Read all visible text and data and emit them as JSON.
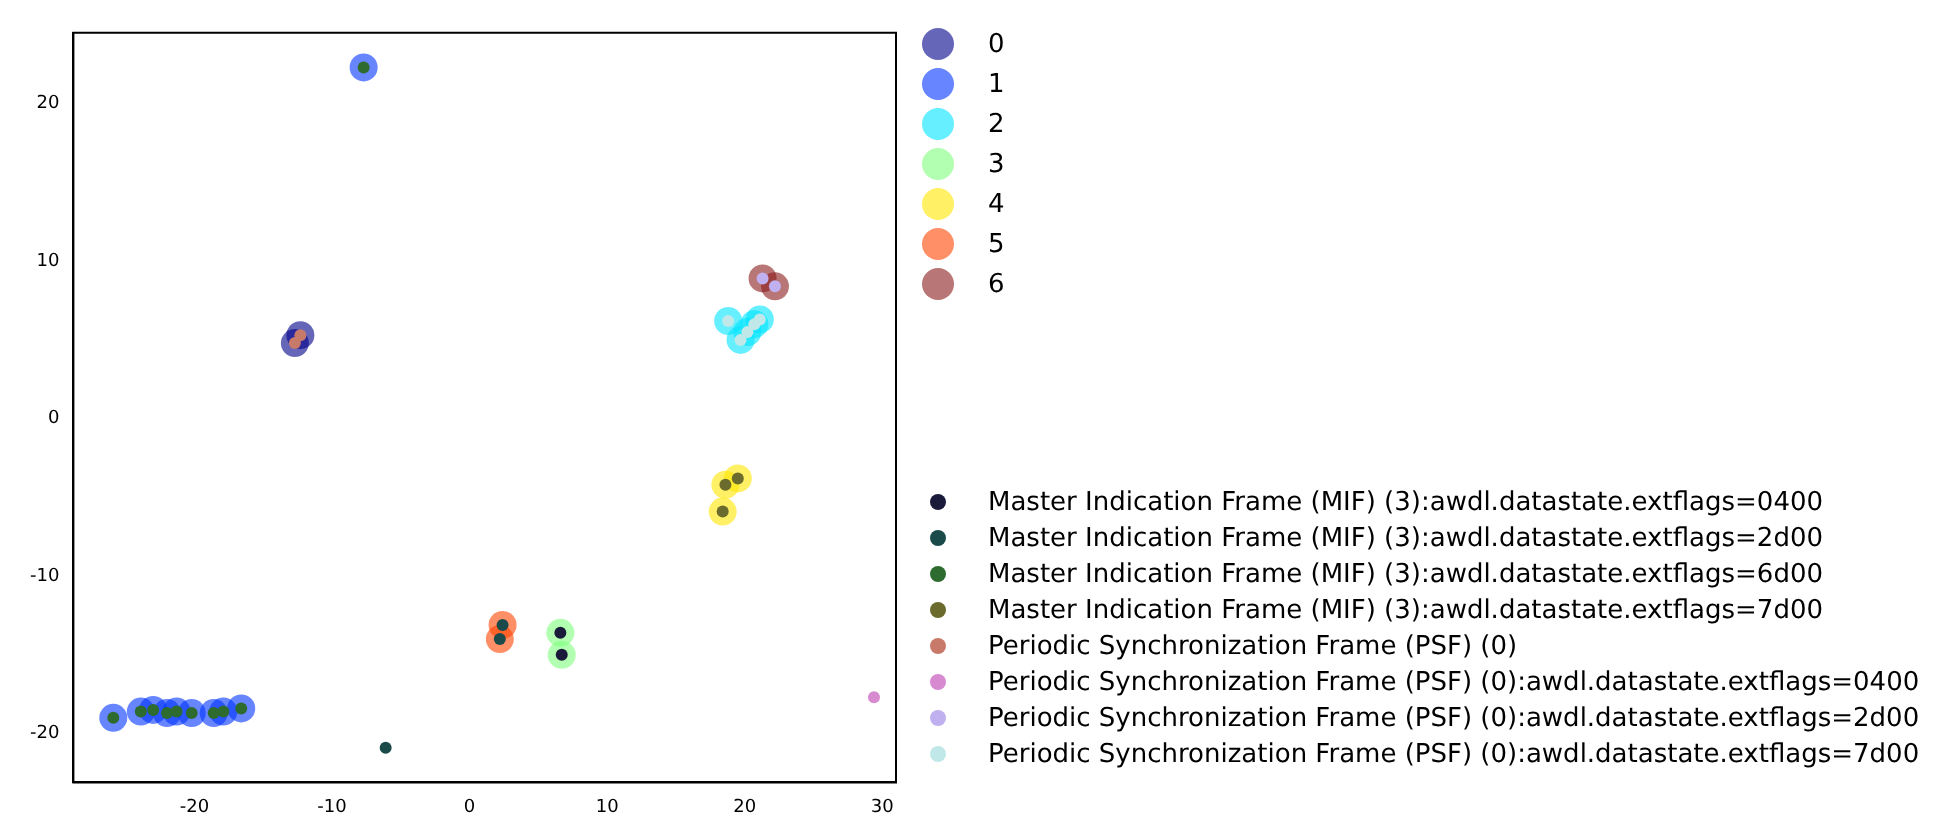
{
  "chart_data": {
    "type": "scatter",
    "xlim": [
      -28.8,
      31
    ],
    "ylim": [
      -23.1,
      24.5
    ],
    "xticks": [
      -20,
      -10,
      0,
      10,
      20,
      30
    ],
    "yticks": [
      -20,
      -10,
      0,
      10,
      20
    ],
    "grid": false,
    "legend": "right",
    "marker": "circle",
    "series": [
      {
        "name": "0",
        "type": "bubble",
        "color": "#00008b",
        "x": [
          -12.7,
          -12.3
        ],
        "values": [
          4.8,
          5.3
        ],
        "sizes": [
          1,
          1
        ]
      },
      {
        "name": "1",
        "type": "bubble",
        "color": "#0033ff",
        "x": [
          -7.7,
          -25.9,
          -23.9,
          -23.0,
          -22.0,
          -21.3,
          -20.2,
          -18.6,
          -17.9,
          -16.6
        ],
        "values": [
          22.3,
          -19.0,
          -18.6,
          -18.5,
          -18.7,
          -18.6,
          -18.7,
          -18.7,
          -18.6,
          -18.4
        ],
        "sizes": [
          1,
          1,
          1,
          1,
          1,
          1,
          1,
          1,
          1,
          1
        ]
      },
      {
        "name": "2",
        "type": "bubble",
        "color": "#00e5ff",
        "x": [
          18.8,
          19.7,
          20.2,
          20.7,
          21.1
        ],
        "values": [
          6.2,
          5.0,
          5.5,
          6.0,
          6.3
        ],
        "sizes": [
          1,
          1,
          1,
          1,
          1
        ]
      },
      {
        "name": "3",
        "type": "bubble",
        "color": "#7fff7f",
        "x": [
          6.6,
          6.7
        ],
        "values": [
          -13.6,
          -15.0
        ],
        "sizes": [
          1,
          1
        ]
      },
      {
        "name": "4",
        "type": "bubble",
        "color": "#ffe600",
        "x": [
          18.6,
          19.5,
          18.4
        ],
        "values": [
          -4.2,
          -3.8,
          -5.9
        ],
        "sizes": [
          1,
          1,
          1
        ]
      },
      {
        "name": "5",
        "type": "bubble",
        "color": "#ff4500",
        "x": [
          2.4,
          2.2
        ],
        "values": [
          -13.1,
          -14.0
        ],
        "sizes": [
          1,
          1
        ]
      },
      {
        "name": "6",
        "type": "bubble",
        "color": "#8b1a1a",
        "x": [
          21.3,
          22.2
        ],
        "values": [
          8.9,
          8.4
        ],
        "sizes": [
          1,
          1
        ]
      },
      {
        "name": "Master Indication Frame (MIF) (3):awdl.datastate.extflags=0400",
        "color": "#1a1a3a",
        "x": [
          6.6,
          6.7
        ],
        "values": [
          -13.6,
          -15.0
        ]
      },
      {
        "name": "Master Indication Frame (MIF) (3):awdl.datastate.extflags=2d00",
        "color": "#1a4a4a",
        "x": [
          2.4,
          2.2,
          -6.1
        ],
        "values": [
          -13.1,
          -14.0,
          -20.9
        ]
      },
      {
        "name": "Master Indication Frame (MIF) (3):awdl.datastate.extflags=6d00",
        "color": "#2e6b2e",
        "x": [
          -7.7,
          -25.9,
          -23.9,
          -23.0,
          -22.0,
          -21.3,
          -20.2,
          -18.6,
          -17.9,
          -16.6
        ],
        "values": [
          22.3,
          -19.0,
          -18.6,
          -18.5,
          -18.7,
          -18.6,
          -18.7,
          -18.7,
          -18.6,
          -18.4
        ]
      },
      {
        "name": "Master Indication Frame (MIF) (3):awdl.datastate.extflags=7d00",
        "color": "#6b6b2e",
        "x": [
          18.6,
          19.5,
          18.4
        ],
        "values": [
          -4.2,
          -3.8,
          -5.9
        ]
      },
      {
        "name": "Periodic Synchronization Frame (PSF) (0)",
        "color": "#c87a6a",
        "x": [
          -12.7,
          -12.3
        ],
        "values": [
          4.8,
          5.3
        ]
      },
      {
        "name": "Periodic Synchronization Frame (PSF) (0):awdl.datastate.extflags=0400",
        "color": "#d88ad0",
        "x": [
          29.4
        ],
        "values": [
          -17.7
        ]
      },
      {
        "name": "Periodic Synchronization Frame (PSF) (0):awdl.datastate.extflags=2d00",
        "color": "#c0b0f0",
        "x": [
          21.3,
          22.2
        ],
        "values": [
          8.9,
          8.4
        ]
      },
      {
        "name": "Periodic Synchronization Frame (PSF) (0):awdl.datastate.extflags=7d00",
        "color": "#c0e8e8",
        "x": [
          18.8,
          19.7,
          20.2,
          20.7,
          21.1
        ],
        "values": [
          6.2,
          5.0,
          5.5,
          6.0,
          6.3
        ]
      }
    ]
  }
}
